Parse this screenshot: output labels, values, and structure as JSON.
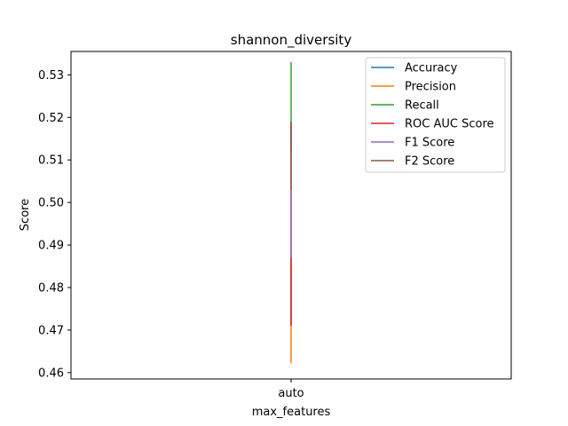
{
  "chart_data": {
    "type": "line",
    "title": "shannon_diversity",
    "xlabel": "max_features",
    "ylabel": "Score",
    "categories": [
      "auto"
    ],
    "ylim": [
      0.4585,
      0.5355
    ],
    "yticks": [
      0.46,
      0.47,
      0.48,
      0.49,
      0.5,
      0.51,
      0.52,
      0.53
    ],
    "ytick_labels": [
      "0.46",
      "0.47",
      "0.48",
      "0.49",
      "0.50",
      "0.51",
      "0.52",
      "0.53"
    ],
    "grid": false,
    "legend_position": "top-right",
    "series": [
      {
        "name": "Accuracy",
        "color": "#1f77b4",
        "low": 0.471,
        "high": 0.487
      },
      {
        "name": "Precision",
        "color": "#ff7f0e",
        "low": 0.4622,
        "high": 0.487
      },
      {
        "name": "Recall",
        "color": "#2ca02c",
        "low": 0.512,
        "high": 0.533
      },
      {
        "name": "ROC AUC Score",
        "color": "#d62728",
        "low": 0.471,
        "high": 0.519
      },
      {
        "name": "F1 Score",
        "color": "#9467bd",
        "low": 0.487,
        "high": 0.503
      },
      {
        "name": "F2 Score",
        "color": "#8c564b",
        "low": 0.503,
        "high": 0.519
      }
    ]
  }
}
